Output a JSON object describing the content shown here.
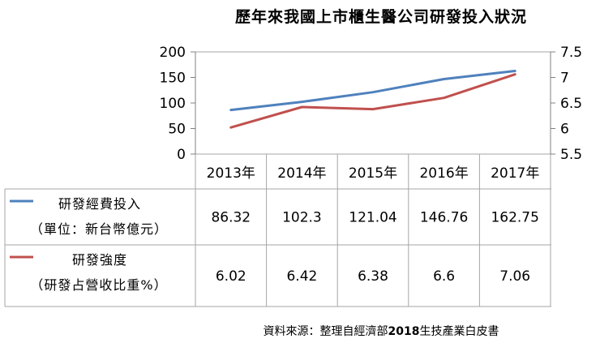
{
  "chart_data": {
    "type": "line",
    "title": "歷年來我國上市櫃生醫公司研發投入狀況",
    "categories": [
      "2013年",
      "2014年",
      "2015年",
      "2016年",
      "2017年"
    ],
    "y_left": {
      "ticks": [
        "200",
        "150",
        "100",
        "50",
        "0"
      ],
      "range": [
        0,
        200
      ]
    },
    "y_right": {
      "ticks": [
        "7.5",
        "7",
        "6.5",
        "6",
        "5.5"
      ],
      "range": [
        5.5,
        7.5
      ]
    },
    "grid": false,
    "legend": "data-table",
    "series": [
      {
        "name": "研發經費投入",
        "unit_label": "（單位：新台幣億元）",
        "axis": "left",
        "color": "#4f81bd",
        "values": [
          86.32,
          102.3,
          121.04,
          146.76,
          162.75
        ],
        "labels": [
          "86.32",
          "102.3",
          "121.04",
          "146.76",
          "162.75"
        ]
      },
      {
        "name": "研發強度",
        "unit_label": "（研發占營收比重%）",
        "axis": "right",
        "color": "#c0504d",
        "values": [
          6.02,
          6.42,
          6.38,
          6.6,
          7.06
        ],
        "labels": [
          "6.02",
          "6.42",
          "6.38",
          "6.6",
          "7.06"
        ]
      }
    ]
  },
  "source": {
    "prefix": "資料來源：整理自經濟部",
    "year": "2018",
    "suffix": "生技產業白皮書"
  }
}
